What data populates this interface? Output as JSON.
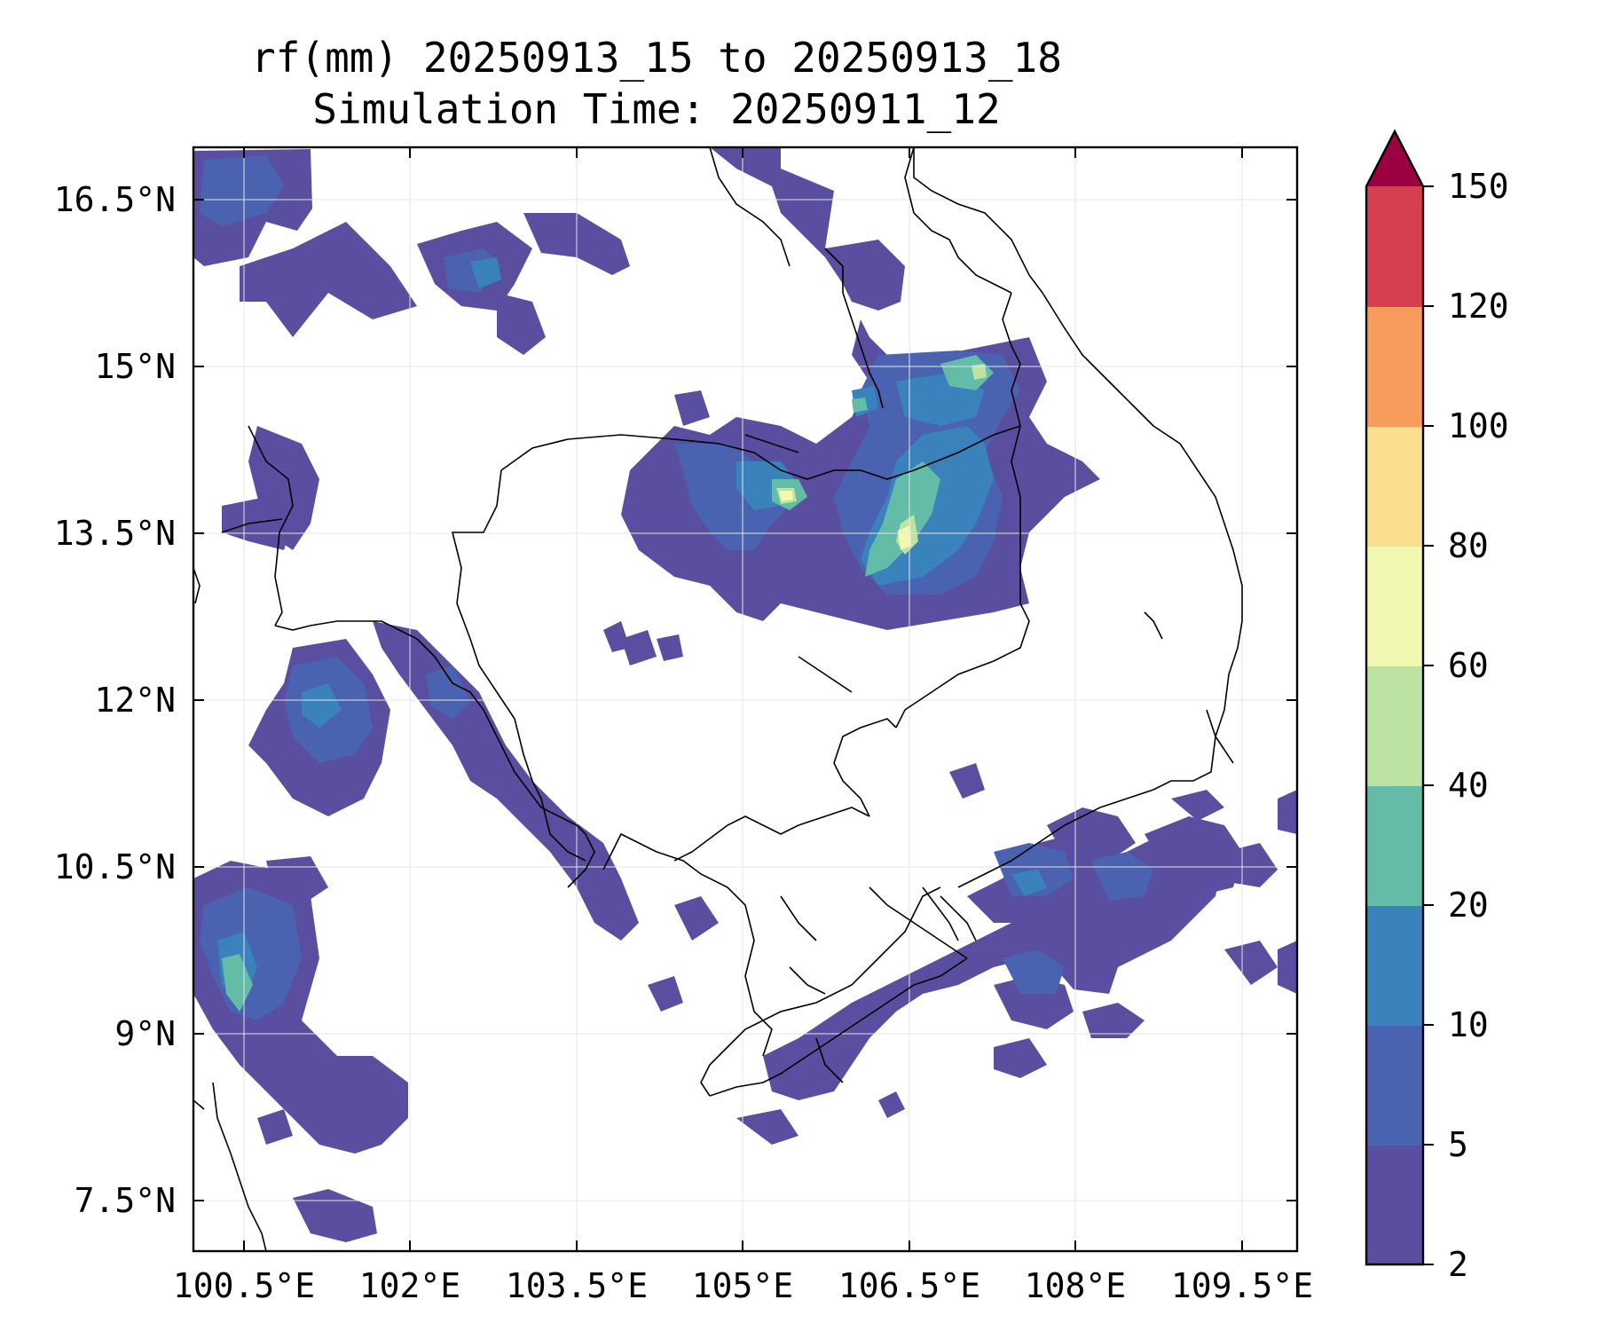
{
  "title": {
    "line1": "rf(mm) 20250913_15 to 20250913_18",
    "line2": "Simulation Time: 20250911_12"
  },
  "map": {
    "lon_range": [
      100.05,
      110.0
    ],
    "lat_range": [
      7.0,
      16.95
    ],
    "lat_ticks": [
      "16.5°N",
      "15°N",
      "13.5°N",
      "12°N",
      "10.5°N",
      "9°N",
      "7.5°N"
    ],
    "lon_ticks": [
      "100.5°E",
      "102°E",
      "103.5°E",
      "105°E",
      "106.5°E",
      "108°E",
      "109.5°E"
    ],
    "gridlines": true,
    "coastline_color": "#000000",
    "variable": "rainfall accumulation (mm)"
  },
  "colorbar": {
    "levels": [
      "2",
      "5",
      "10",
      "20",
      "40",
      "60",
      "80",
      "100",
      "120",
      "150"
    ],
    "colors": [
      "#5a4ea0",
      "#4a63b0",
      "#3a82bc",
      "#62bca8",
      "#bde3a3",
      "#f2f8b0",
      "#fbdf8e",
      "#f89c5d",
      "#d63f4f"
    ],
    "extend_color": "#9b0043",
    "extend": "max"
  }
}
